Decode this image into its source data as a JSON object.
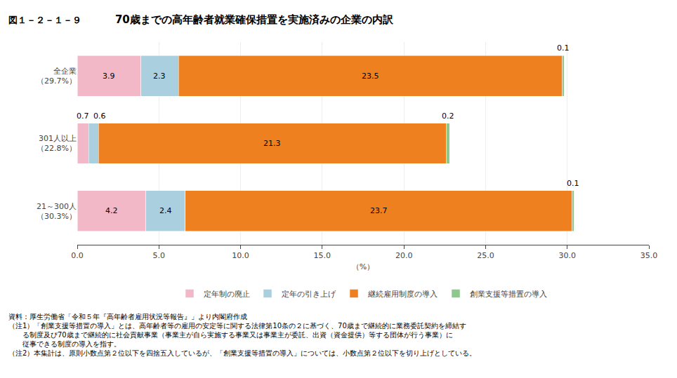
{
  "chart_data": {
    "type": "bar",
    "orientation": "horizontal",
    "stacked": true,
    "title": "70歳までの高年齢者就業確保措置を実施済みの企業の内訳",
    "annotations": [
      "図１－２－１－９",
      "資料：厚生労働省「令和５年『高年齢者雇用状況等報告』」より内閣府作成",
      "（注1）「創業支援等措置の導入」とは、高年齢者等の雇用の安定等に関する法律第10条の２に基づく、70歳まで継続的に業務委託契約を締結す",
      "　　る制度及び70歳まで継続的に社会貢献事業（事業主が自ら実施する事業又は事業主が委託、出資（資金提供）等する団体が行う事業）に",
      "　　従事できる制度の導入を指す。",
      "（注2）本集計は、原則小数点第２位以下を四捨五入しているが、「創業支援等措置の導入」については、小数点第２位以下を切り上げとしている。"
    ],
    "xlabel": "（%）",
    "categories": [
      "全企業\n（29.7%）",
      "301人以上\n（22.8%）",
      "21～300人\n（30.3%）"
    ],
    "series": [
      {
        "name": "定年制の廃止",
        "color": "#F2B8C8",
        "values": [
          3.9,
          0.7,
          4.2
        ]
      },
      {
        "name": "定年の引き上げ",
        "color": "#AACFDF",
        "values": [
          2.3,
          0.6,
          2.4
        ]
      },
      {
        "name": "継続雇用制度の導入",
        "color": "#EF8020",
        "values": [
          23.5,
          21.3,
          23.7
        ]
      },
      {
        "name": "創業支援等措置の導入",
        "color": "#8DC88D",
        "values": [
          0.1,
          0.2,
          0.1
        ]
      }
    ],
    "xlim": [
      0,
      35.0
    ],
    "xticks": [
      {
        "value": 0,
        "label": "0.0"
      },
      {
        "value": 5,
        "label": "5.0"
      },
      {
        "value": 10,
        "label": "10.0"
      },
      {
        "value": 15,
        "label": "15.0"
      },
      {
        "value": 20,
        "label": "20.0"
      },
      {
        "value": 25,
        "label": "25.0"
      },
      {
        "value": 30,
        "label": "30.0"
      },
      {
        "value": 35,
        "label": "35.0"
      }
    ],
    "grid": true,
    "legend": "bottom",
    "data_labels": true
  }
}
